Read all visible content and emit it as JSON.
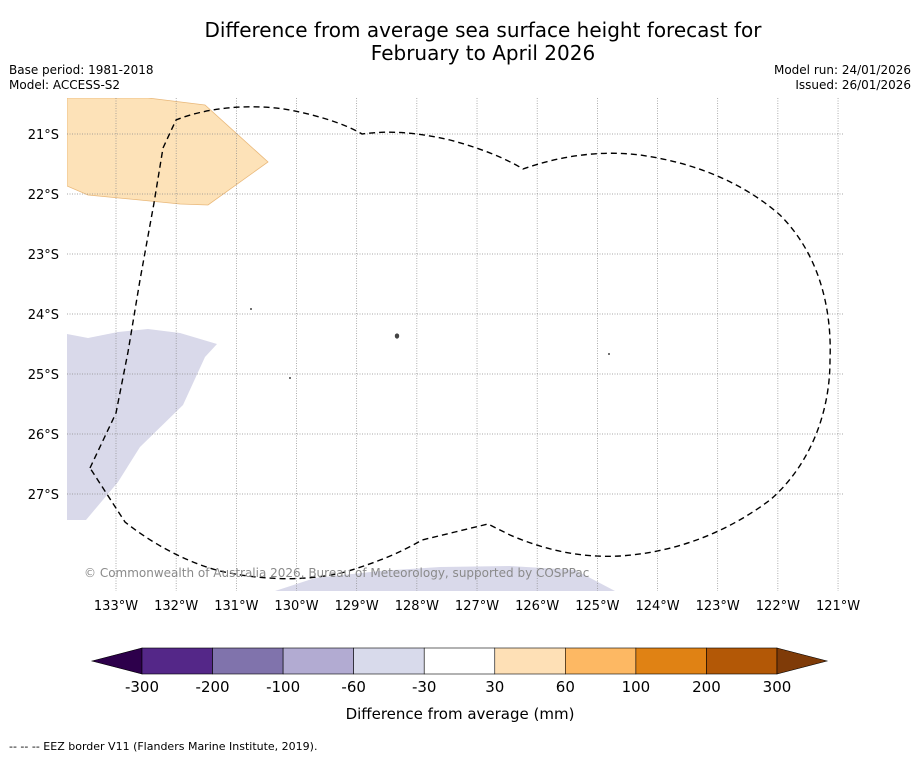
{
  "header": {
    "title_line1": "Difference from average sea surface height forecast for",
    "title_line2": "February to April 2026",
    "base_period": "Base period: 1981-2018",
    "model": "Model: ACCESS-S2",
    "model_run": "Model run: 24/01/2026",
    "issued": "Issued: 26/01/2026"
  },
  "map": {
    "lon_range": [
      -133.6,
      -120.9
    ],
    "lat_range": [
      -28.6,
      -20.4
    ],
    "lon_ticks": [
      {
        "value": -133,
        "label": "133°W"
      },
      {
        "value": -132,
        "label": "132°W"
      },
      {
        "value": -131,
        "label": "131°W"
      },
      {
        "value": -130,
        "label": "130°W"
      },
      {
        "value": -129,
        "label": "129°W"
      },
      {
        "value": -128,
        "label": "128°W"
      },
      {
        "value": -127,
        "label": "127°W"
      },
      {
        "value": -126,
        "label": "126°W"
      },
      {
        "value": -125,
        "label": "125°W"
      },
      {
        "value": -124,
        "label": "124°W"
      },
      {
        "value": -123,
        "label": "123°W"
      },
      {
        "value": -122,
        "label": "122°W"
      },
      {
        "value": -121,
        "label": "121°W"
      }
    ],
    "lat_ticks": [
      {
        "value": -21,
        "label": "21°S"
      },
      {
        "value": -22,
        "label": "22°S"
      },
      {
        "value": -23,
        "label": "23°S"
      },
      {
        "value": -24,
        "label": "24°S"
      },
      {
        "value": -25,
        "label": "25°S"
      },
      {
        "value": -26,
        "label": "26°S"
      },
      {
        "value": -27,
        "label": "27°S"
      }
    ],
    "copyright": "© Commonwealth of Australia 2026, Bureau of Meteorology, supported by COSPPac",
    "colors": {
      "positive_30_60": "#fde2b8",
      "negative_60_30": "#d9d9ea",
      "eez": "#000000",
      "grid": "#888888"
    }
  },
  "colorbar": {
    "label": "Difference from average (mm)",
    "ticks": [
      "-300",
      "-200",
      "-100",
      "-60",
      "-30",
      "30",
      "60",
      "100",
      "200",
      "300"
    ],
    "colors": [
      "#2d004b",
      "#542788",
      "#8073ac",
      "#b2abd2",
      "#d8daeb",
      "#ffffff",
      "#fee0b6",
      "#fdb863",
      "#e08214",
      "#b35806",
      "#7f3b08"
    ]
  },
  "footer": {
    "eez_note": "--  --  -- EEZ border V11 (Flanders Marine Institute, 2019)."
  }
}
